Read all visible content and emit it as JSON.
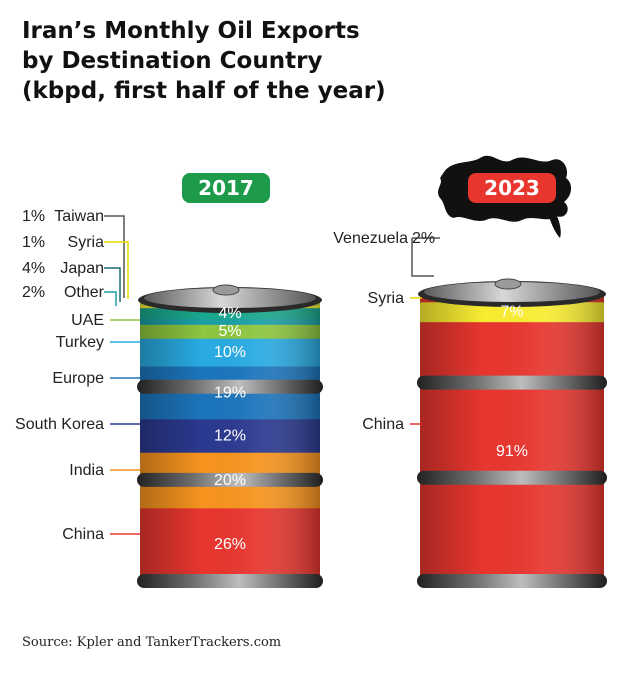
{
  "chart_data": {
    "type": "stacked-barrel",
    "title": [
      "Iran’s Monthly Oil Exports",
      "by Destination Country",
      "(kbpd, first half of the year)"
    ],
    "source": "Source: Kpler and TankerTrackers.com",
    "barrels": [
      {
        "year": "2017",
        "badge_color": "#1e9a4b",
        "segments": [
          {
            "name": "China",
            "value": 26,
            "label": "26%",
            "color": "#e8362f",
            "line_color": "#e8362f"
          },
          {
            "name": "India",
            "value": 20,
            "label": "20%",
            "color": "#f7941e",
            "line_color": "#f7941e"
          },
          {
            "name": "South Korea",
            "value": 12,
            "label": "12%",
            "color": "#2b3990",
            "line_color": "#2b3990"
          },
          {
            "name": "Europe",
            "value": 19,
            "label": "19%",
            "color": "#1c75bc",
            "line_color": "#1c75bc"
          },
          {
            "name": "Turkey",
            "value": 10,
            "label": "10%",
            "color": "#29abe2",
            "line_color": "#29abe2"
          },
          {
            "name": "UAE",
            "value": 5,
            "label": "5%",
            "color": "#8dc63f",
            "line_color": "#8dc63f"
          },
          {
            "name": "Other",
            "value": 2,
            "label": "",
            "color": "#1b9fa5",
            "line_color": "#1b9fa5"
          },
          {
            "name": "Japan",
            "value": 4,
            "label": "4%",
            "color": "#1aa88e",
            "line_color": "#1a6b77"
          },
          {
            "name": "Syria",
            "value": 1,
            "label": "",
            "color": "#f9ed32",
            "line_color": "#e8d800"
          },
          {
            "name": "Taiwan",
            "value": 1,
            "label": "",
            "color": "#c6d84f",
            "line_color": "#555555"
          }
        ],
        "callouts": [
          {
            "segment": "Taiwan",
            "pct": "1%",
            "name": "Taiwan"
          },
          {
            "segment": "Syria",
            "pct": "1%",
            "name": "Syria"
          },
          {
            "segment": "Japan",
            "pct": "4%",
            "name": "Japan"
          },
          {
            "segment": "Other",
            "pct": "2%",
            "name": "Other"
          },
          {
            "segment": "UAE",
            "pct": "",
            "name": "UAE"
          },
          {
            "segment": "Turkey",
            "pct": "",
            "name": "Turkey"
          },
          {
            "segment": "Europe",
            "pct": "",
            "name": "Europe"
          },
          {
            "segment": "South Korea",
            "pct": "",
            "name": "South Korea"
          },
          {
            "segment": "India",
            "pct": "",
            "name": "India"
          },
          {
            "segment": "China",
            "pct": "",
            "name": "China"
          }
        ]
      },
      {
        "year": "2023",
        "badge_color": "#e8362f",
        "segments": [
          {
            "name": "China",
            "value": 91,
            "label": "91%",
            "color": "#e8362f",
            "line_color": "#e8362f"
          },
          {
            "name": "Syria",
            "value": 7,
            "label": "7%",
            "color": "#f9ed32",
            "line_color": "#e8d800"
          },
          {
            "name": "Venezuela",
            "value": 2,
            "label": "",
            "color": "#e8362f",
            "line_color": "#555555"
          }
        ],
        "callouts": [
          {
            "segment": "Venezuela",
            "pct": "2%",
            "name": "Venezuela"
          },
          {
            "segment": "Syria",
            "pct": "",
            "name": "Syria"
          },
          {
            "segment": "China",
            "pct": "",
            "name": "China"
          }
        ]
      }
    ]
  }
}
